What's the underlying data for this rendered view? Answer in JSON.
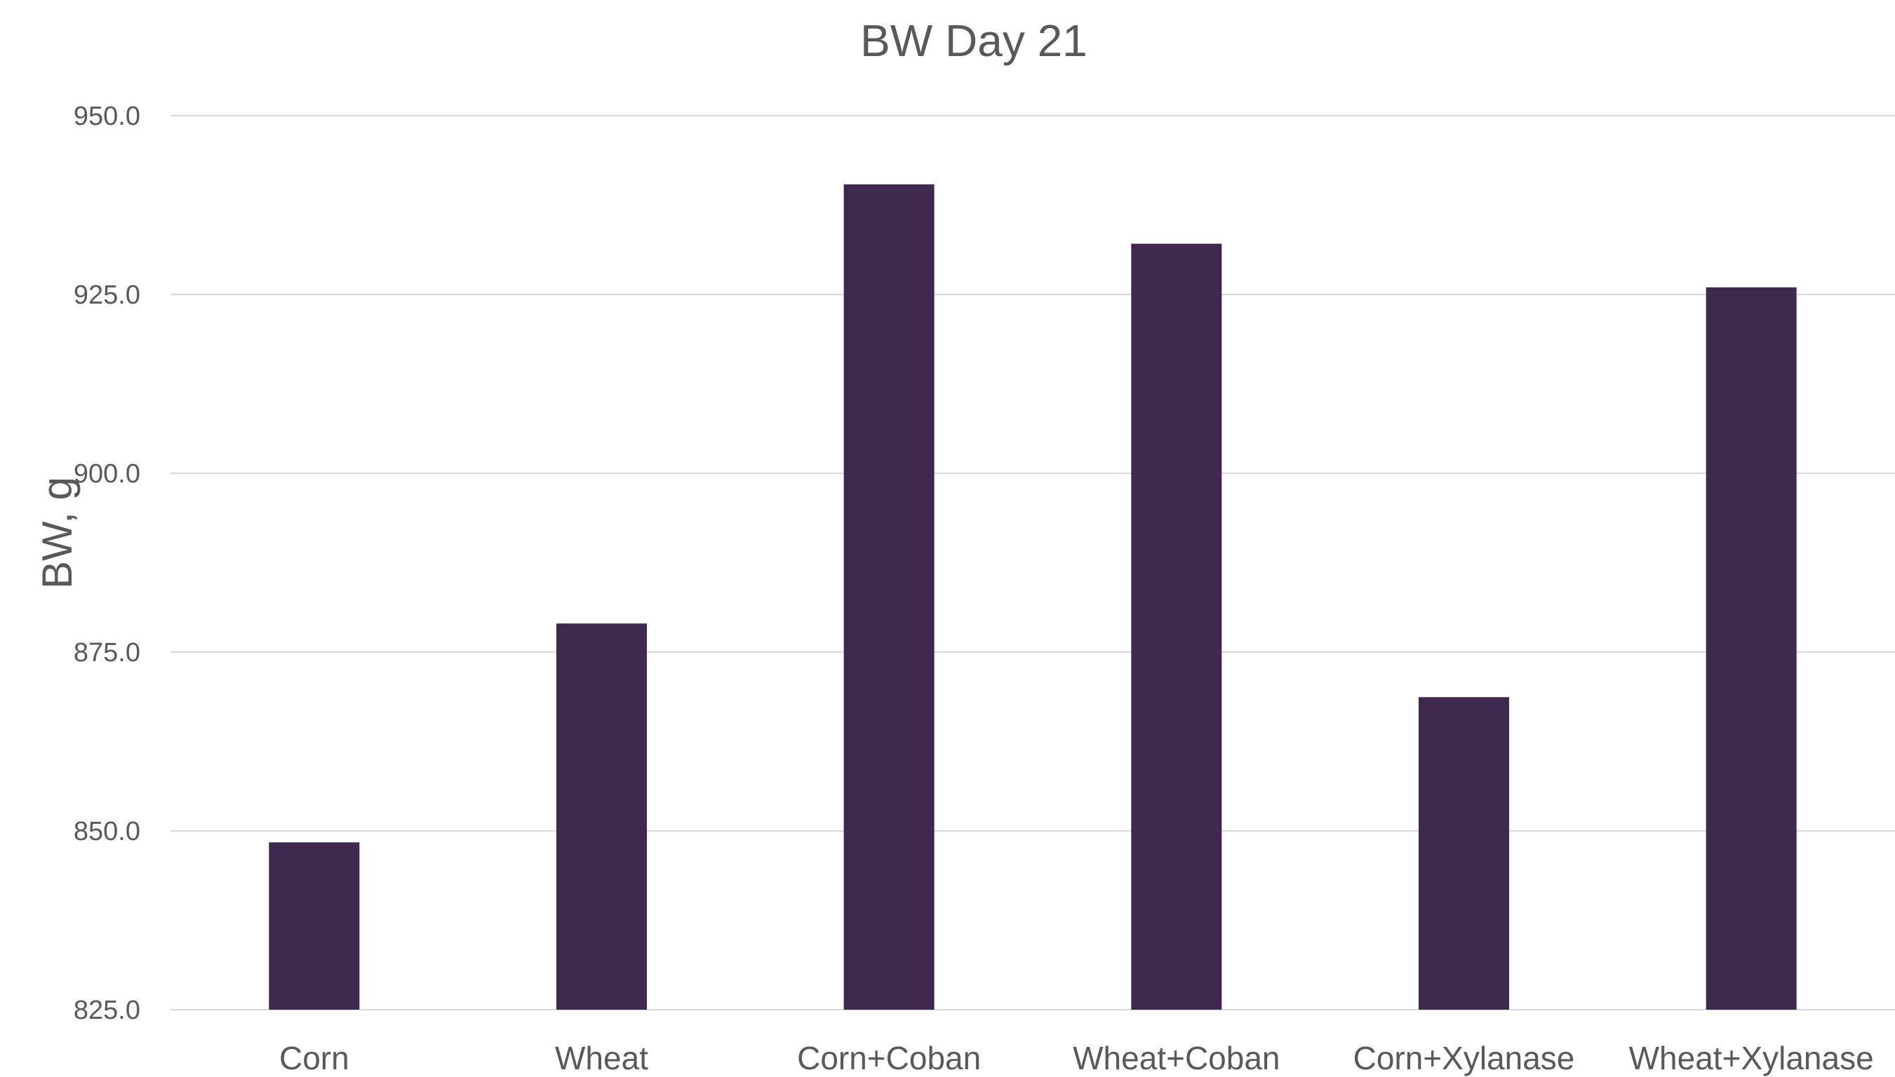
{
  "chart_data": {
    "type": "bar",
    "title": "BW Day 21",
    "xlabel": "",
    "ylabel": "BW, g",
    "categories": [
      "Corn",
      "Wheat",
      "Corn+Coban",
      "Wheat+Coban",
      "Corn+Xylanase",
      "Wheat+Xylanase"
    ],
    "values": [
      848.4,
      879.0,
      940.4,
      932.1,
      868.7,
      926.0
    ],
    "ylim": [
      825.0,
      950.0
    ],
    "yticks": [
      "825.0",
      "850.0",
      "875.0",
      "900.0",
      "925.0",
      "950.0"
    ],
    "grid": true,
    "legend": "none",
    "bar_color": "#3f284d",
    "grid_color": "#d9d9d9",
    "text_color": "#595959"
  }
}
